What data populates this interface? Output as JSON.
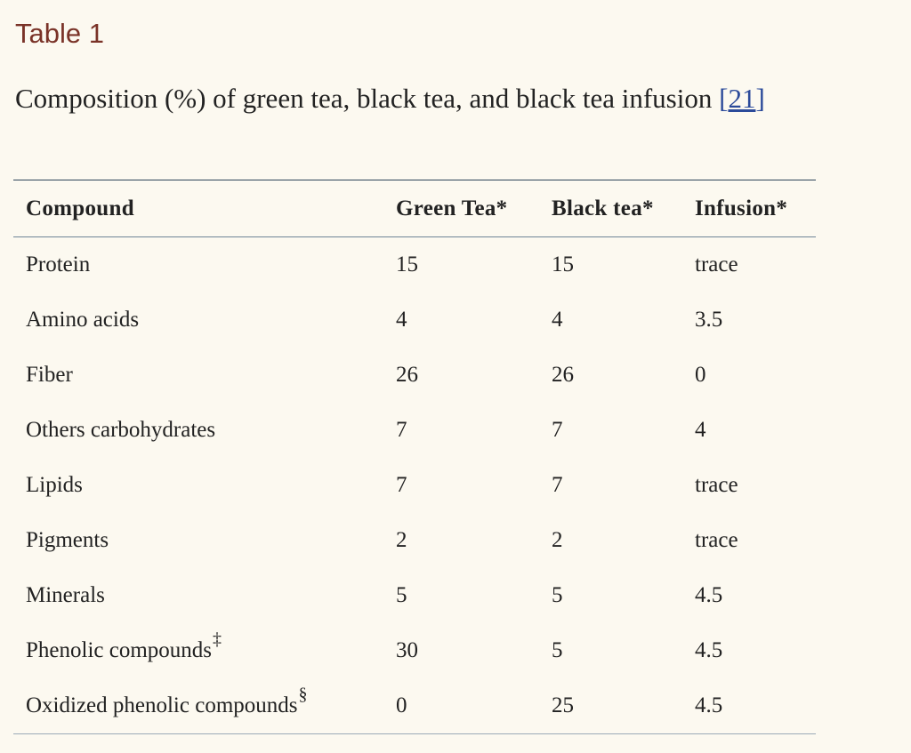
{
  "table_label": "Table 1",
  "caption": {
    "text": "Composition (%) of green tea, black tea, and black tea infusion ",
    "bracket_open": "[",
    "ref": "21",
    "bracket_close": "]"
  },
  "colors": {
    "background": "#fcf9f0",
    "label": "#7a3328",
    "link": "#2b4a9a",
    "rule": "#2c4358"
  },
  "table": {
    "headers": [
      "Compound",
      "Green Tea*",
      "Black tea*",
      "Infusion*"
    ],
    "rows": [
      {
        "compound": "Protein",
        "mark": "",
        "green": "15",
        "black": "15",
        "infusion": "trace"
      },
      {
        "compound": "Amino acids",
        "mark": "",
        "green": "4",
        "black": "4",
        "infusion": "3.5"
      },
      {
        "compound": "Fiber",
        "mark": "",
        "green": "26",
        "black": "26",
        "infusion": "0"
      },
      {
        "compound": "Others carbohydrates",
        "mark": "",
        "green": "7",
        "black": "7",
        "infusion": "4"
      },
      {
        "compound": "Lipids",
        "mark": "",
        "green": "7",
        "black": "7",
        "infusion": "trace"
      },
      {
        "compound": "Pigments",
        "mark": "",
        "green": "2",
        "black": "2",
        "infusion": "trace"
      },
      {
        "compound": "Minerals",
        "mark": "",
        "green": "5",
        "black": "5",
        "infusion": "4.5"
      },
      {
        "compound": "Phenolic compounds",
        "mark": "‡",
        "green": "30",
        "black": "5",
        "infusion": "4.5"
      },
      {
        "compound": "Oxidized phenolic compounds",
        "mark": "§",
        "green": "0",
        "black": "25",
        "infusion": "4.5"
      }
    ]
  }
}
